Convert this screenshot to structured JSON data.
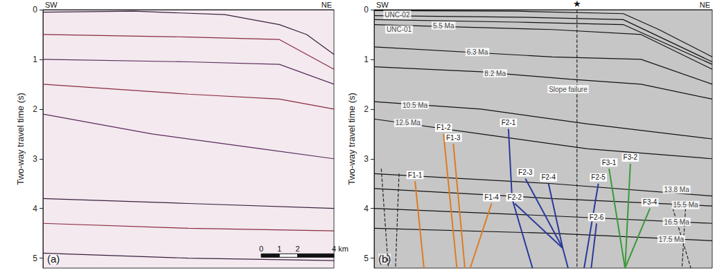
{
  "chart_data": [
    {
      "type": "line",
      "panel_label": "(a)",
      "corner_labels": [
        "SW",
        "NE"
      ],
      "ylabel": "Two-way travel time (s)",
      "xlim": [
        0,
        16
      ],
      "ylim": [
        0,
        5.2
      ],
      "yticks": [
        0,
        1,
        2,
        3,
        4,
        5
      ],
      "tick_labels": "y",
      "grid": false,
      "scale_bar": {
        "values": [
          0,
          1,
          2,
          4
        ],
        "labels": [
          "0",
          "1",
          "2",
          "4 km"
        ]
      },
      "series": [
        {
          "color": "#3a1f3a",
          "line_style": "solid",
          "x": [
            0,
            5,
            10,
            13,
            14.5,
            16
          ],
          "values": [
            0.05,
            0.03,
            0.1,
            0.3,
            0.5,
            0.9
          ]
        },
        {
          "color": "#8a2a40",
          "line_style": "solid",
          "x": [
            0,
            8,
            13,
            16
          ],
          "values": [
            0.5,
            0.55,
            0.6,
            1.2
          ]
        },
        {
          "color": "#5a2a5a",
          "line_style": "solid",
          "x": [
            0,
            8,
            13,
            16
          ],
          "values": [
            1.0,
            1.05,
            1.1,
            1.5
          ]
        },
        {
          "color": "#8a2a40",
          "line_style": "solid",
          "x": [
            0,
            8,
            13,
            16
          ],
          "values": [
            1.5,
            1.7,
            1.8,
            2.0
          ]
        },
        {
          "color": "#5a2a5a",
          "line_style": "solid",
          "x": [
            0,
            6,
            12,
            16
          ],
          "values": [
            2.1,
            2.5,
            2.8,
            3.0
          ]
        },
        {
          "color": "#3a1f3a",
          "line_style": "solid",
          "x": [
            0,
            8,
            16
          ],
          "values": [
            3.8,
            3.9,
            4.0
          ]
        },
        {
          "color": "#8a2a40",
          "line_style": "solid",
          "x": [
            0,
            8,
            16
          ],
          "values": [
            4.3,
            4.4,
            4.45
          ]
        },
        {
          "color": "#3a1f3a",
          "line_style": "solid",
          "x": [
            0,
            8,
            16
          ],
          "values": [
            4.9,
            5.0,
            5.05
          ]
        }
      ]
    },
    {
      "type": "line",
      "panel_label": "(b)",
      "corner_labels": [
        "SW",
        "NE"
      ],
      "ylabel": "Two-way travel time (s)",
      "xlim": [
        0,
        19
      ],
      "ylim": [
        0,
        5.2
      ],
      "yticks": [
        0,
        1,
        2,
        3,
        4,
        5
      ],
      "tick_labels": "y",
      "grid": false,
      "well": {
        "x": 11.4,
        "label": "★"
      },
      "series": [
        {
          "color": "#111111",
          "line_style": "solid",
          "x": [
            0,
            8,
            14,
            16,
            19
          ],
          "values": [
            0.02,
            0.03,
            0.08,
            0.4,
            0.95
          ]
        },
        {
          "color": "#111111",
          "line_style": "solid",
          "x": [
            0,
            8,
            14,
            19
          ],
          "values": [
            0.12,
            0.15,
            0.2,
            1.05
          ]
        },
        {
          "color": "#111111",
          "line_style": "solid",
          "x": [
            0,
            8,
            14,
            19
          ],
          "values": [
            0.2,
            0.25,
            0.3,
            1.1
          ]
        },
        {
          "color": "#111111",
          "line_style": "solid",
          "x": [
            0,
            10,
            15,
            19
          ],
          "values": [
            0.3,
            0.4,
            0.5,
            1.2
          ]
        },
        {
          "color": "#111111",
          "line_style": "solid",
          "x": [
            0,
            10,
            15,
            19
          ],
          "values": [
            0.75,
            0.95,
            1.0,
            1.5
          ]
        },
        {
          "color": "#111111",
          "line_style": "solid",
          "x": [
            0,
            6,
            11,
            15,
            19
          ],
          "values": [
            1.15,
            1.25,
            1.4,
            1.5,
            1.8
          ]
        },
        {
          "color": "#111111",
          "line_style": "solid",
          "x": [
            0,
            6,
            12,
            19
          ],
          "values": [
            1.85,
            2.0,
            2.3,
            2.6
          ]
        },
        {
          "color": "#111111",
          "line_style": "solid",
          "x": [
            0,
            6,
            12,
            19
          ],
          "values": [
            2.2,
            2.5,
            2.8,
            3.0
          ]
        },
        {
          "color": "#111111",
          "line_style": "solid",
          "x": [
            0,
            10,
            19
          ],
          "values": [
            3.3,
            3.5,
            3.75
          ]
        },
        {
          "color": "#111111",
          "line_style": "solid",
          "x": [
            0,
            10,
            19
          ],
          "values": [
            3.6,
            3.8,
            3.95
          ]
        },
        {
          "color": "#111111",
          "line_style": "solid",
          "x": [
            0,
            10,
            19
          ],
          "values": [
            4.0,
            4.15,
            4.3
          ]
        },
        {
          "color": "#111111",
          "line_style": "solid",
          "x": [
            0,
            10,
            19
          ],
          "values": [
            4.4,
            4.5,
            4.65
          ]
        },
        {
          "color": "#222222",
          "line_style": "dashed",
          "x": [
            0.4,
            0.8
          ],
          "values": [
            3.2,
            5.2
          ]
        },
        {
          "color": "#222222",
          "line_style": "dashed",
          "x": [
            1.4,
            1.2
          ],
          "values": [
            3.3,
            5.2
          ]
        },
        {
          "color": "#222222",
          "line_style": "dashed",
          "x": [
            16.7,
            17.8
          ],
          "values": [
            3.9,
            5.2
          ]
        },
        {
          "color": "#222222",
          "line_style": "dashed",
          "x": [
            17.5,
            17.3
          ],
          "values": [
            4.0,
            5.2
          ]
        },
        {
          "name": "F1-1",
          "color": "#e07b20",
          "line_style": "solid",
          "x": [
            2.3,
            2.8
          ],
          "values": [
            3.45,
            5.2
          ]
        },
        {
          "name": "F1-2",
          "color": "#e07b20",
          "line_style": "solid",
          "x": [
            3.9,
            4.65
          ],
          "values": [
            2.5,
            5.2
          ]
        },
        {
          "name": "F1-3",
          "color": "#e07b20",
          "line_style": "solid",
          "x": [
            4.45,
            5.1
          ],
          "values": [
            2.7,
            5.2
          ]
        },
        {
          "name": "F1-4",
          "color": "#e07b20",
          "line_style": "solid",
          "x": [
            6.6,
            5.4
          ],
          "values": [
            3.9,
            5.2
          ]
        },
        {
          "name": "F2-1",
          "color": "#2a3a9a",
          "line_style": "solid",
          "x": [
            7.55,
            7.75,
            8.9
          ],
          "values": [
            2.4,
            3.8,
            5.2
          ]
        },
        {
          "name": "F2-2",
          "color": "#2a3a9a",
          "line_style": "solid",
          "x": [
            7.9,
            10.6
          ],
          "values": [
            3.9,
            4.8
          ]
        },
        {
          "name": "F2-3",
          "color": "#2a3a9a",
          "line_style": "solid",
          "x": [
            8.5,
            10.6
          ],
          "values": [
            3.4,
            4.8
          ]
        },
        {
          "name": "F2-4",
          "color": "#2a3a9a",
          "line_style": "solid",
          "x": [
            9.8,
            10.6,
            10.9
          ],
          "values": [
            3.5,
            4.8,
            5.2
          ]
        },
        {
          "name": "F2-5",
          "color": "#2a3a9a",
          "line_style": "solid",
          "x": [
            12.6,
            11.8
          ],
          "values": [
            3.5,
            5.2
          ]
        },
        {
          "name": "F2-6",
          "color": "#2a3a9a",
          "line_style": "solid",
          "x": [
            12.5,
            12.2
          ],
          "values": [
            4.3,
            5.2
          ]
        },
        {
          "name": "F3-1",
          "color": "#3a9a3a",
          "line_style": "solid",
          "x": [
            13.2,
            14.1
          ],
          "values": [
            3.2,
            5.2
          ]
        },
        {
          "name": "F3-2",
          "color": "#3a9a3a",
          "line_style": "solid",
          "x": [
            14.4,
            14.1
          ],
          "values": [
            3.1,
            5.2
          ]
        },
        {
          "name": "F3-4",
          "color": "#3a9a3a",
          "line_style": "solid",
          "x": [
            15.5,
            14.1
          ],
          "values": [
            4.0,
            5.2
          ]
        }
      ],
      "annotations": [
        {
          "text": "UNC-02",
          "x": 1.3,
          "y": 0.1
        },
        {
          "text": "UNC-01",
          "x": 1.4,
          "y": 0.4
        },
        {
          "text": "5.5 Ma",
          "x": 3.9,
          "y": 0.32
        },
        {
          "text": "6.3 Ma",
          "x": 5.8,
          "y": 0.85
        },
        {
          "text": "8.2 Ma",
          "x": 6.8,
          "y": 1.28
        },
        {
          "text": "Slope failure",
          "x": 10.9,
          "y": 1.6
        },
        {
          "text": "10.5 Ma",
          "x": 2.3,
          "y": 1.92
        },
        {
          "text": "12.5 Ma",
          "x": 1.9,
          "y": 2.28
        },
        {
          "text": "13.8 Ma",
          "x": 17.0,
          "y": 3.62
        },
        {
          "text": "15.5 Ma",
          "x": 17.5,
          "y": 3.93
        },
        {
          "text": "16.5 Ma",
          "x": 17.0,
          "y": 4.27
        },
        {
          "text": "17.5 Ma",
          "x": 16.7,
          "y": 4.62
        }
      ]
    }
  ]
}
